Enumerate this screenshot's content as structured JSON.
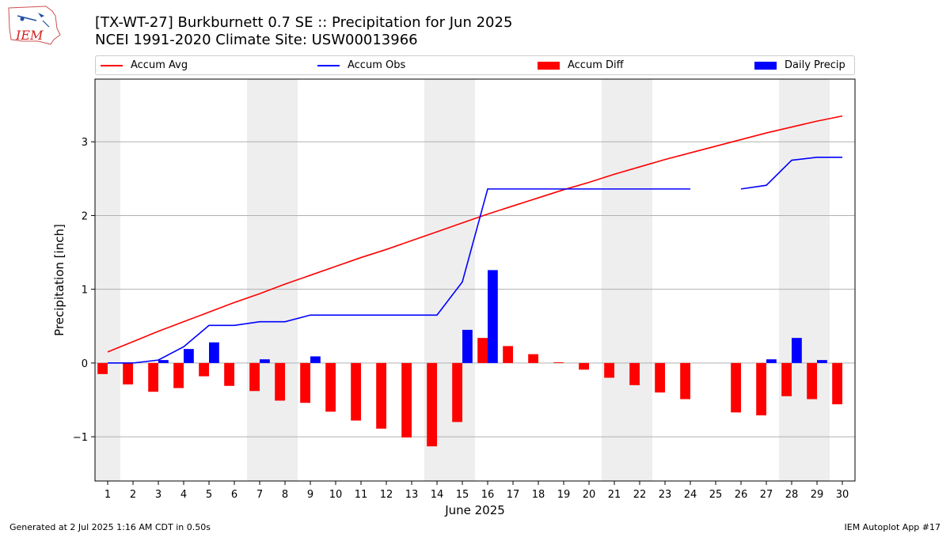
{
  "header": {
    "title_line1": "[TX-WT-27] Burkburnett 0.7 SE :: Precipitation for Jun 2025",
    "title_line2": "NCEI 1991-2020 Climate Site: USW00013966",
    "logo_text": "IEM"
  },
  "footer": {
    "left": "Generated at 2 Jul 2025 1:16 AM CDT in 0.50s",
    "right": "IEM Autoplot App #17"
  },
  "colors": {
    "accum_avg": "#ff0000",
    "accum_obs": "#0000ff",
    "accum_diff": "#ff0000",
    "daily_precip": "#0000ff",
    "weekend_shade": "#eeeeee",
    "grid": "#b0b0b0"
  },
  "chart_data": {
    "type": "bar",
    "xlabel": "June 2025",
    "ylabel": "Precipitation [inch]",
    "xlim": [
      0.5,
      30.5
    ],
    "ylim": [
      -1.6,
      3.85
    ],
    "yticks": [
      -1,
      0,
      1,
      2,
      3
    ],
    "ytick_labels": [
      "−1",
      "0",
      "1",
      "2",
      "3"
    ],
    "grid": "horizontal",
    "legend_position": "top",
    "days": [
      1,
      2,
      3,
      4,
      5,
      6,
      7,
      8,
      9,
      10,
      11,
      12,
      13,
      14,
      15,
      16,
      17,
      18,
      19,
      20,
      21,
      22,
      23,
      24,
      25,
      26,
      27,
      28,
      29,
      30
    ],
    "weekend_days": [
      1,
      7,
      8,
      14,
      15,
      21,
      22,
      28,
      29
    ],
    "series": [
      {
        "name": "Accum Avg",
        "kind": "line",
        "values": [
          0.15,
          0.29,
          0.43,
          0.56,
          0.69,
          0.82,
          0.94,
          1.07,
          1.19,
          1.31,
          1.43,
          1.54,
          1.66,
          1.78,
          1.9,
          2.02,
          2.13,
          2.24,
          2.35,
          2.45,
          2.56,
          2.66,
          2.76,
          2.85,
          2.94,
          3.03,
          3.12,
          3.2,
          3.28,
          3.35
        ]
      },
      {
        "name": "Accum Obs",
        "kind": "line",
        "values": [
          0.0,
          0.0,
          0.04,
          0.22,
          0.51,
          0.51,
          0.56,
          0.56,
          0.65,
          0.65,
          0.65,
          0.65,
          0.65,
          0.65,
          1.1,
          2.36,
          2.36,
          2.36,
          2.36,
          2.36,
          2.36,
          2.36,
          2.36,
          2.36,
          null,
          2.36,
          2.41,
          2.75,
          2.79,
          2.79
        ]
      },
      {
        "name": "Accum Diff",
        "kind": "bar",
        "values": [
          -0.15,
          -0.29,
          -0.39,
          -0.34,
          -0.18,
          -0.31,
          -0.38,
          -0.51,
          -0.54,
          -0.66,
          -0.78,
          -0.89,
          -1.01,
          -1.13,
          -0.8,
          0.34,
          0.23,
          0.12,
          0.01,
          -0.09,
          -0.2,
          -0.3,
          -0.4,
          -0.49,
          null,
          -0.67,
          -0.71,
          -0.45,
          -0.49,
          -0.56
        ]
      },
      {
        "name": "Daily Precip",
        "kind": "bar",
        "values": [
          0,
          0,
          0.04,
          0.19,
          0.28,
          0,
          0.05,
          0,
          0.09,
          0,
          0,
          0,
          0,
          0,
          0.45,
          1.26,
          0,
          0,
          0,
          0,
          0,
          0,
          0,
          0,
          null,
          0,
          0.05,
          0.34,
          0.04,
          0
        ]
      }
    ]
  }
}
